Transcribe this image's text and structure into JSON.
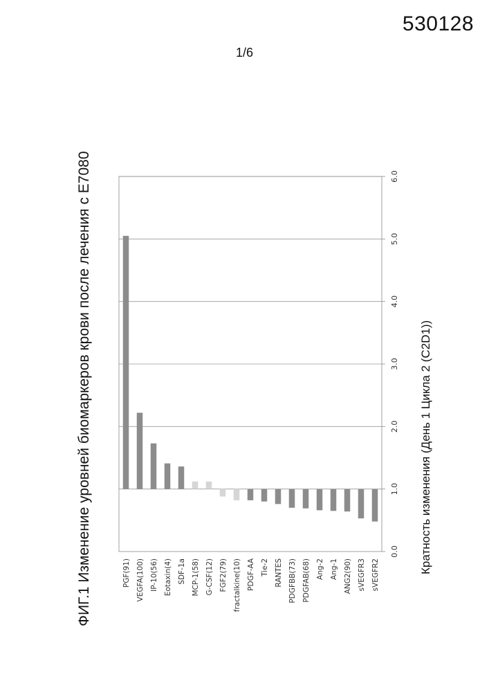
{
  "header": {
    "doc_number": "530128",
    "page_number": "1/6"
  },
  "figure": {
    "title": "ФИГ.1 Изменение уровней биомаркеров крови после лечения с E7080"
  },
  "chart_data": {
    "type": "bar",
    "orientation": "horizontal",
    "title": "ФИГ.1 Изменение уровней биомаркеров крови после лечения с E7080",
    "xlabel": "Кратность изменения (День 1 Цикла 2 (C2D1))",
    "ylabel": "",
    "xlim": [
      0,
      6
    ],
    "tick_values": [
      0,
      1,
      2,
      3,
      4,
      5,
      6
    ],
    "tick_labels": [
      "0.0",
      "1.0",
      "2.0",
      "3.0",
      "4.0",
      "5.0",
      "6.0"
    ],
    "grid": true,
    "categories": [
      "PGF(91)",
      "VEGFA(100)",
      "IP-10(56)",
      "Eotaxin(4)",
      "SDF-1a",
      "MCP-1(58)",
      "G-CSF(12)",
      "FGF2(79)",
      "fractalkine(10)",
      "PDGF-AA",
      "Tie-2",
      "RANTES",
      "PDGFBB(73)",
      "PDGFAB(68)",
      "Ang-2",
      "Ang-1",
      "ANG2(90)",
      "sVEGFR3",
      "sVEGFR2"
    ],
    "values": [
      5.05,
      2.22,
      1.73,
      1.41,
      1.36,
      1.12,
      1.12,
      0.88,
      0.82,
      0.82,
      0.8,
      0.76,
      0.7,
      0.69,
      0.66,
      0.65,
      0.64,
      0.53,
      0.48
    ],
    "colors": [
      "#8c8c8c",
      "#8c8c8c",
      "#8c8c8c",
      "#8c8c8c",
      "#8c8c8c",
      "#d6d6d6",
      "#d6d6d6",
      "#d6d6d6",
      "#d6d6d6",
      "#8c8c8c",
      "#8c8c8c",
      "#8c8c8c",
      "#8c8c8c",
      "#8c8c8c",
      "#8c8c8c",
      "#8c8c8c",
      "#8c8c8c",
      "#8c8c8c",
      "#8c8c8c"
    ]
  }
}
